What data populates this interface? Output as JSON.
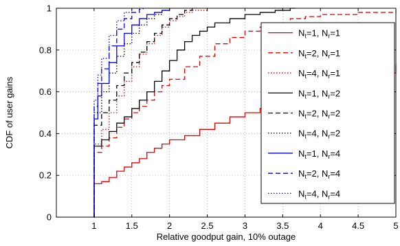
{
  "chart_data": {
    "type": "line",
    "title": "",
    "xlabel": "Relative goodput gain, 10% outage",
    "ylabel": "CDF of user gains",
    "xlim": [
      0.5,
      5
    ],
    "ylim": [
      0,
      1
    ],
    "xticks": [
      "1",
      "1.5",
      "2",
      "2.5",
      "3",
      "3.5",
      "4",
      "4.5",
      "5"
    ],
    "yticks": [
      "0",
      "0.2",
      "0.4",
      "0.6",
      "0.8",
      "1"
    ],
    "grid": true,
    "legend_position": "right",
    "series": [
      {
        "name": "N_t=1, N_r=1",
        "color": "#e00000",
        "dash": "solid",
        "x": [
          1,
          1.001,
          1.1,
          1.2,
          1.3,
          1.4,
          1.5,
          1.6,
          1.7,
          1.8,
          1.9,
          2.0,
          2.2,
          2.4,
          2.6,
          2.8,
          3.0,
          3.2,
          3.4,
          3.6,
          3.8,
          4.0,
          4.2,
          4.4,
          4.6,
          4.8,
          4.95,
          5.0
        ],
        "y": [
          0,
          0.16,
          0.17,
          0.19,
          0.22,
          0.24,
          0.26,
          0.28,
          0.31,
          0.33,
          0.35,
          0.37,
          0.39,
          0.42,
          0.45,
          0.48,
          0.5,
          0.52,
          0.53,
          0.55,
          0.57,
          0.59,
          0.61,
          0.63,
          0.65,
          0.67,
          0.69,
          0.73
        ]
      },
      {
        "name": "N_t=2, N_r=1",
        "color": "#e00000",
        "dash": "dashed",
        "x": [
          1,
          1.001,
          1.1,
          1.2,
          1.3,
          1.4,
          1.5,
          1.6,
          1.7,
          1.8,
          1.9,
          2.0,
          2.2,
          2.4,
          2.6,
          2.8,
          3.0,
          3.2,
          3.4,
          3.6,
          3.8,
          4.0,
          4.5,
          5.0
        ],
        "y": [
          0,
          0.31,
          0.34,
          0.38,
          0.43,
          0.47,
          0.5,
          0.53,
          0.56,
          0.6,
          0.63,
          0.66,
          0.72,
          0.77,
          0.83,
          0.86,
          0.89,
          0.91,
          0.93,
          0.95,
          0.96,
          0.97,
          0.98,
          0.99
        ]
      },
      {
        "name": "N_t=4, N_r=1",
        "color": "#e00000",
        "dash": "dotted",
        "x": [
          1,
          1.001,
          1.1,
          1.2,
          1.3,
          1.4,
          1.5,
          1.6,
          1.7,
          1.8,
          1.9,
          2.0,
          2.1,
          2.2,
          2.3,
          2.5
        ],
        "y": [
          0,
          0.35,
          0.42,
          0.5,
          0.58,
          0.65,
          0.72,
          0.78,
          0.83,
          0.87,
          0.91,
          0.94,
          0.96,
          0.98,
          0.99,
          1.0
        ]
      },
      {
        "name": "N_t=1, N_r=2",
        "color": "#000000",
        "dash": "solid",
        "x": [
          1,
          1.001,
          1.1,
          1.2,
          1.3,
          1.4,
          1.5,
          1.6,
          1.7,
          1.8,
          1.9,
          2.0,
          2.1,
          2.2,
          2.3,
          2.4,
          2.5,
          2.6,
          2.8,
          3.0,
          3.2,
          3.4,
          3.6,
          3.67
        ],
        "y": [
          0,
          0.34,
          0.37,
          0.41,
          0.45,
          0.48,
          0.52,
          0.56,
          0.6,
          0.65,
          0.7,
          0.75,
          0.8,
          0.84,
          0.87,
          0.89,
          0.91,
          0.93,
          0.95,
          0.97,
          0.98,
          0.99,
          1.0,
          1.0
        ]
      },
      {
        "name": "N_t=2, N_r=2",
        "color": "#000000",
        "dash": "dashed",
        "x": [
          1,
          1.001,
          1.1,
          1.2,
          1.3,
          1.4,
          1.5,
          1.6,
          1.7,
          1.8,
          1.9,
          2.0,
          2.1,
          2.2,
          2.3
        ],
        "y": [
          0,
          0.44,
          0.5,
          0.56,
          0.63,
          0.69,
          0.74,
          0.79,
          0.84,
          0.88,
          0.92,
          0.95,
          0.97,
          0.99,
          1.0
        ]
      },
      {
        "name": "N_t=4, N_r=2",
        "color": "#000000",
        "dash": "dotted",
        "x": [
          1,
          1.001,
          1.1,
          1.2,
          1.3,
          1.4,
          1.5,
          1.6,
          1.7,
          1.8,
          1.9,
          2.0
        ],
        "y": [
          0,
          0.5,
          0.6,
          0.69,
          0.77,
          0.83,
          0.88,
          0.92,
          0.95,
          0.97,
          0.99,
          1.0
        ]
      },
      {
        "name": "N_t=1, N_r=4",
        "color": "#0000ee",
        "dash": "solid",
        "x": [
          1,
          1.001,
          1.05,
          1.1,
          1.2,
          1.3,
          1.4,
          1.5,
          1.6,
          1.7,
          1.8,
          1.9,
          2.0
        ],
        "y": [
          0,
          0.47,
          0.58,
          0.64,
          0.74,
          0.82,
          0.88,
          0.92,
          0.95,
          0.97,
          0.98,
          0.99,
          1.0
        ]
      },
      {
        "name": "N_t=2, N_r=4",
        "color": "#0000ee",
        "dash": "dashed",
        "x": [
          1,
          1.001,
          1.05,
          1.1,
          1.2,
          1.3,
          1.4,
          1.5,
          1.6,
          1.65
        ],
        "y": [
          0,
          0.53,
          0.64,
          0.71,
          0.82,
          0.9,
          0.95,
          0.98,
          0.995,
          1.0
        ]
      },
      {
        "name": "N_t=4, N_r=4",
        "color": "#0000ee",
        "dash": "dotted",
        "x": [
          1,
          1.001,
          1.05,
          1.1,
          1.2,
          1.3,
          1.4,
          1.5
        ],
        "y": [
          0,
          0.56,
          0.68,
          0.76,
          0.87,
          0.94,
          0.98,
          1.0
        ]
      }
    ]
  }
}
